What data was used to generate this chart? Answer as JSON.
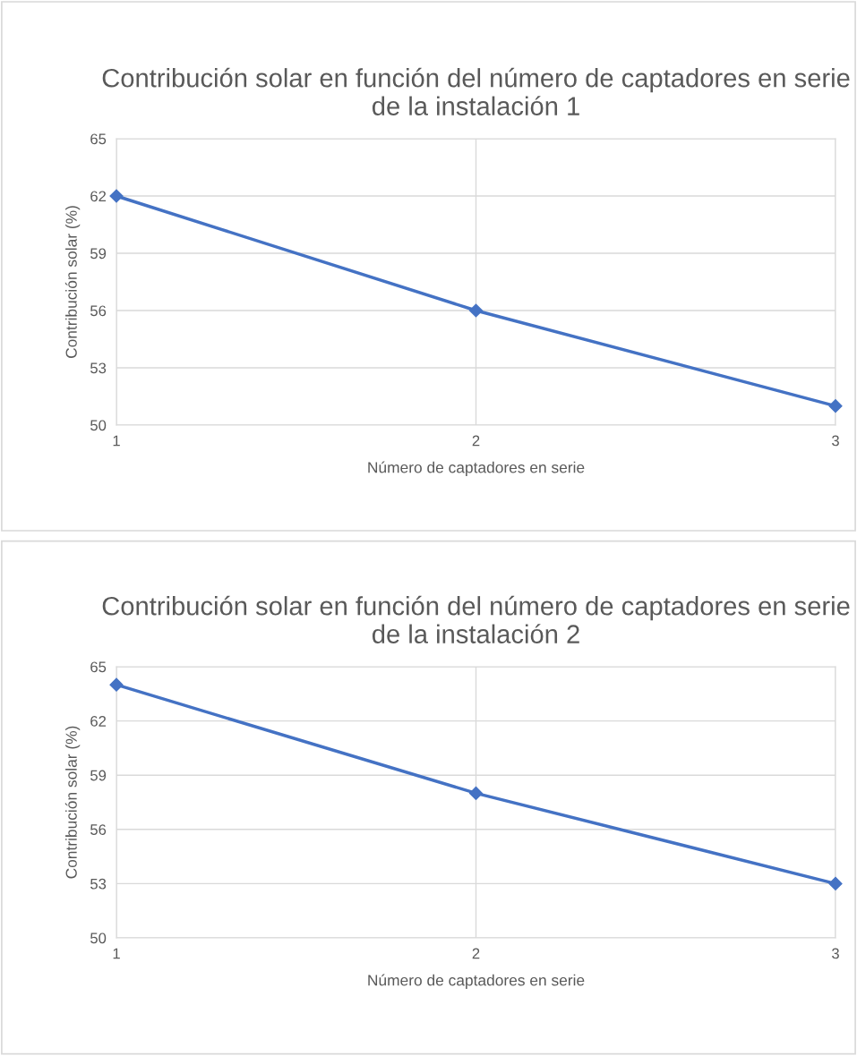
{
  "chart_data": [
    {
      "type": "line",
      "title": "Contribución solar en función del número de captadores en serie de la instalación 1",
      "xlabel": "Número de captadores en serie",
      "ylabel": "Contribución solar (%)",
      "x": [
        1,
        2,
        3
      ],
      "series": [
        {
          "color": "#4472c4",
          "values": [
            62,
            56,
            51
          ]
        }
      ],
      "xlim": [
        1,
        3
      ],
      "xticks": [
        1,
        2,
        3
      ],
      "ylim": [
        50,
        65
      ],
      "yticks": [
        50,
        53,
        56,
        59,
        62,
        65
      ],
      "grid": true,
      "marker": "diamond",
      "line_style": "solid"
    },
    {
      "type": "line",
      "title": "Contribución solar en función del número de captadores en serie de la instalación 2",
      "xlabel": "Número de captadores en serie",
      "ylabel": "Contribución solar (%)",
      "x": [
        1,
        2,
        3
      ],
      "series": [
        {
          "color": "#4472c4",
          "values": [
            64,
            58,
            53
          ]
        }
      ],
      "xlim": [
        1,
        3
      ],
      "xticks": [
        1,
        2,
        3
      ],
      "ylim": [
        50,
        65
      ],
      "yticks": [
        50,
        53,
        56,
        59,
        62,
        65
      ],
      "grid": true,
      "marker": "diamond",
      "line_style": "solid"
    }
  ]
}
